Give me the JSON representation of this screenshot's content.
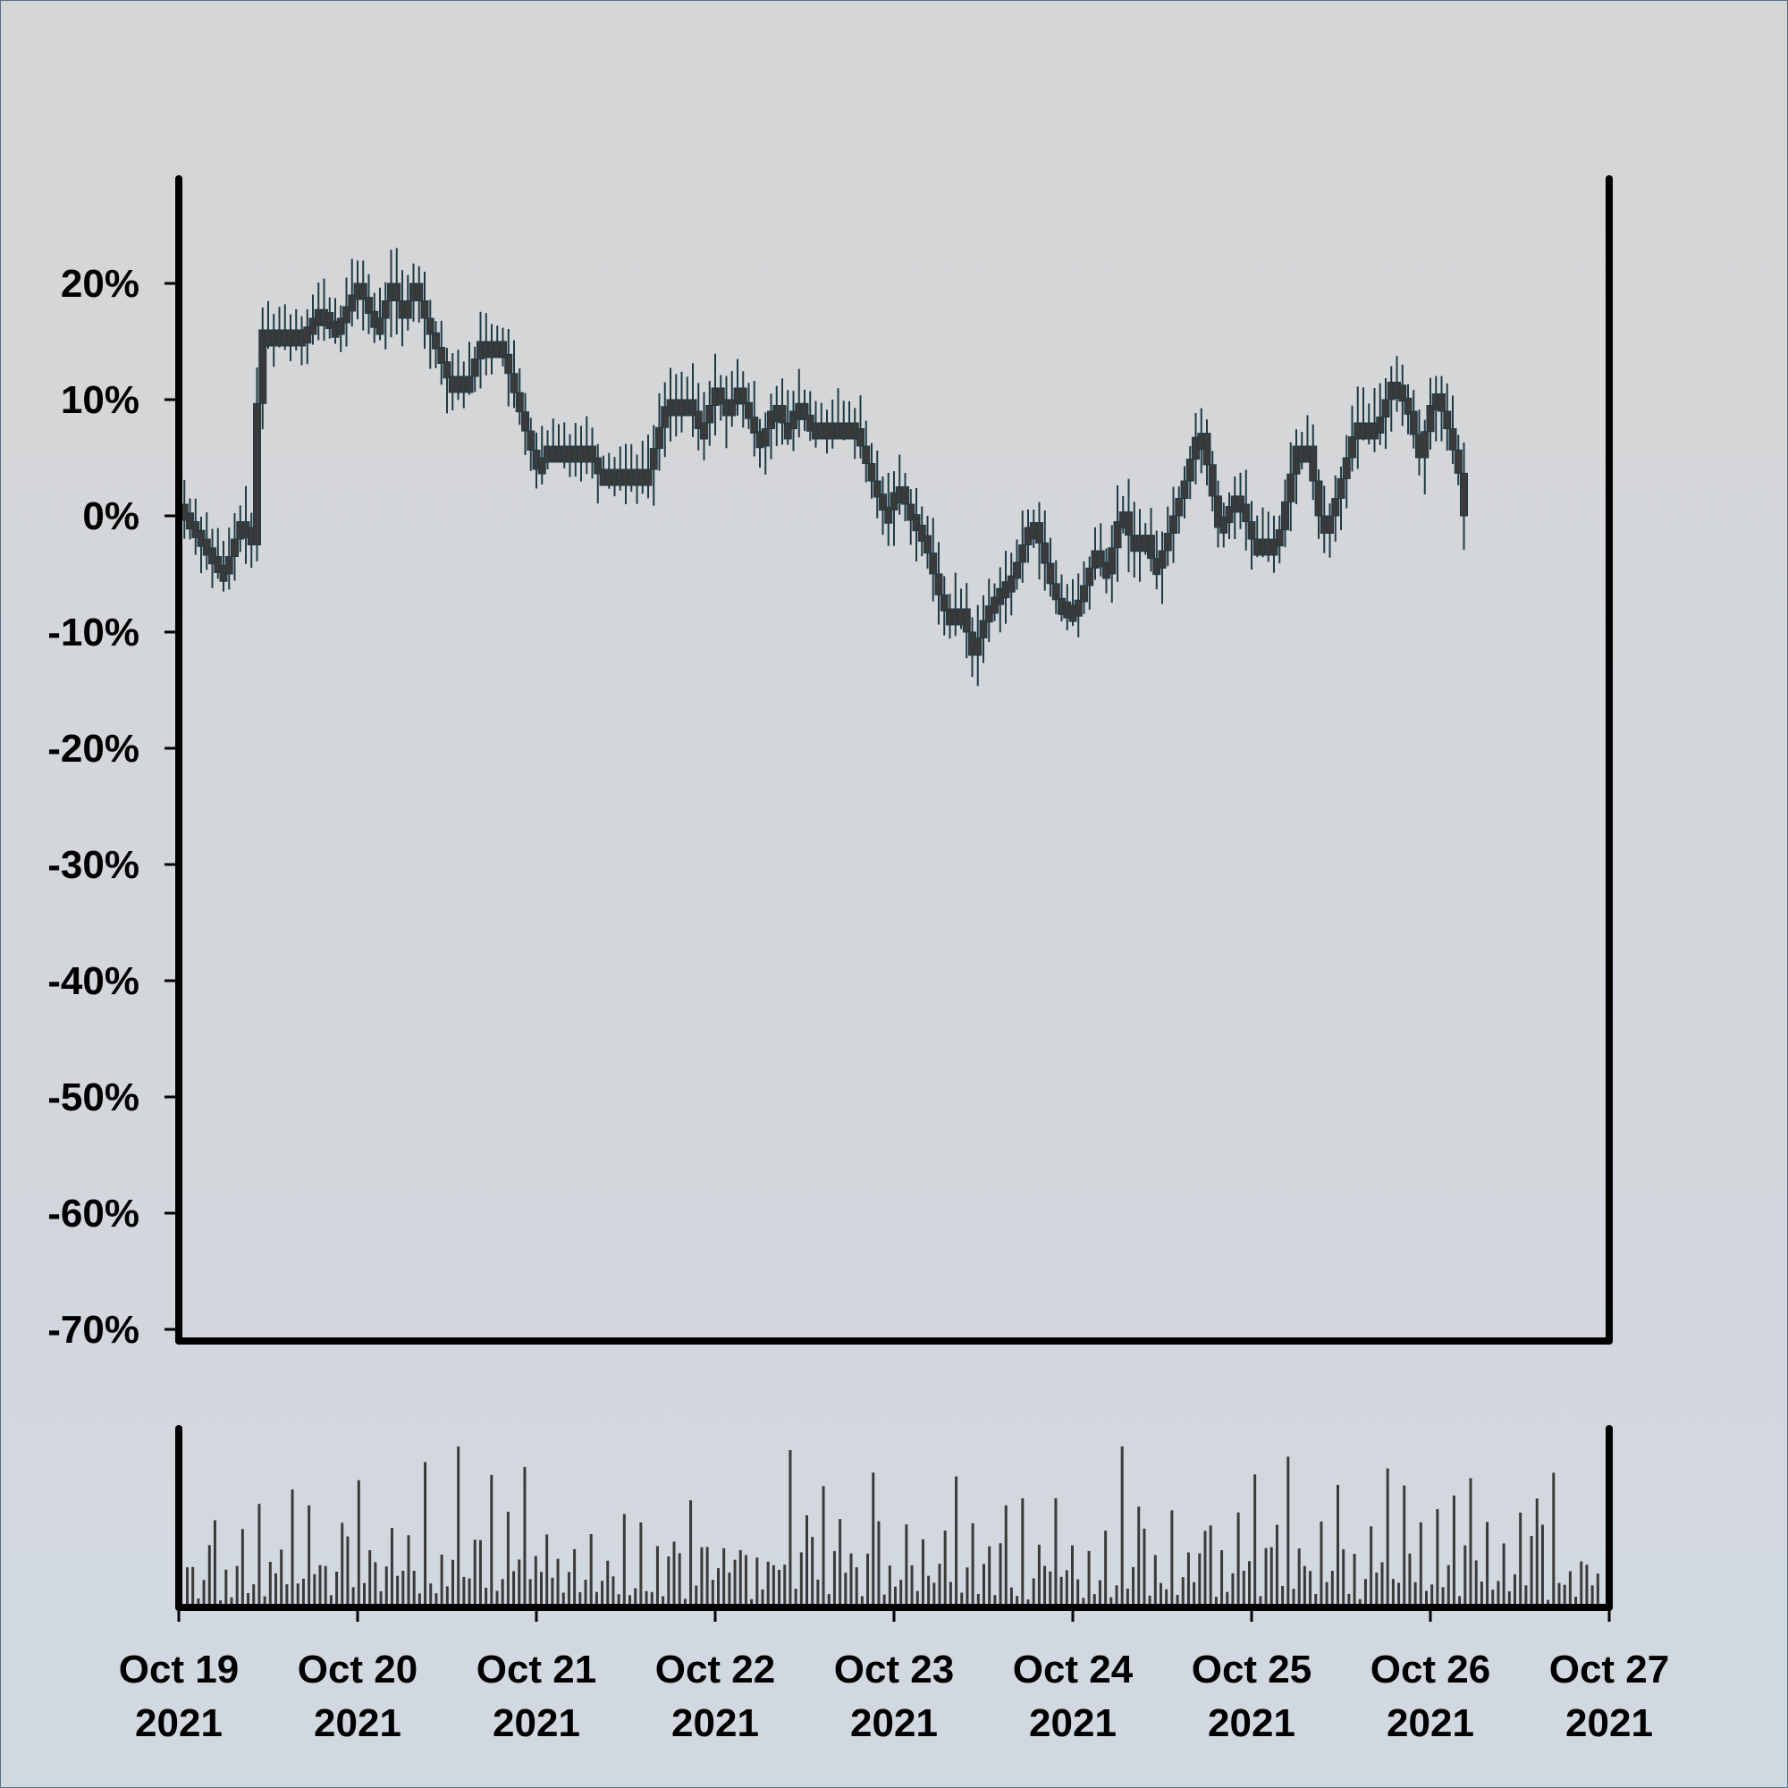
{
  "chart_data": {
    "type": "candlestick",
    "title": "",
    "xlabel": "",
    "ylabel": "",
    "y_unit": "%",
    "ylim": [
      -71,
      29
    ],
    "y_ticks": [
      20,
      10,
      0,
      -10,
      -20,
      -30,
      -40,
      -50,
      -60,
      -70
    ],
    "y_tick_labels": [
      "20%",
      "10%",
      "0%",
      "-10%",
      "-20%",
      "-30%",
      "-40%",
      "-50%",
      "-60%",
      "-70%"
    ],
    "x_ticks": [
      "2021-10-19",
      "2021-10-20",
      "2021-10-21",
      "2021-10-22",
      "2021-10-23",
      "2021-10-24",
      "2021-10-25",
      "2021-10-26",
      "2021-10-27"
    ],
    "x_tick_labels": [
      {
        "line1": "Oct 19",
        "line2": "2021"
      },
      {
        "line1": "Oct 20",
        "line2": "2021"
      },
      {
        "line1": "Oct 21",
        "line2": "2021"
      },
      {
        "line1": "Oct 22",
        "line2": "2021"
      },
      {
        "line1": "Oct 23",
        "line2": "2021"
      },
      {
        "line1": "Oct 24",
        "line2": "2021"
      },
      {
        "line1": "Oct 25",
        "line2": "2021"
      },
      {
        "line1": "Oct 26",
        "line2": "2021"
      },
      {
        "line1": "Oct 27",
        "line2": "2021"
      }
    ],
    "xlim": [
      "2021-10-19",
      "2021-10-27"
    ],
    "candle_interval_hours": 0.75,
    "close_path": [
      [
        "2021-10-19T00:00",
        1
      ],
      [
        "2021-10-19T03:00",
        -2
      ],
      [
        "2021-10-19T06:00",
        -5
      ],
      [
        "2021-10-19T08:30",
        0
      ],
      [
        "2021-10-19T10:00",
        -3
      ],
      [
        "2021-10-19T10:45",
        16
      ],
      [
        "2021-10-19T17:00",
        16
      ],
      [
        "2021-10-19T19:00",
        18
      ],
      [
        "2021-10-19T21:00",
        16
      ],
      [
        "2021-10-20T00:00",
        20
      ],
      [
        "2021-10-20T02:30",
        16
      ],
      [
        "2021-10-20T04:30",
        20
      ],
      [
        "2021-10-20T06:00",
        17
      ],
      [
        "2021-10-20T07:30",
        20
      ],
      [
        "2021-10-20T09:00",
        17
      ],
      [
        "2021-10-20T12:00",
        12
      ],
      [
        "2021-10-20T15:00",
        12
      ],
      [
        "2021-10-20T16:30",
        15
      ],
      [
        "2021-10-20T19:00",
        15
      ],
      [
        "2021-10-21T00:00",
        4
      ],
      [
        "2021-10-21T01:30",
        6
      ],
      [
        "2021-10-21T07:00",
        6
      ],
      [
        "2021-10-21T08:00",
        4
      ],
      [
        "2021-10-21T15:00",
        4
      ],
      [
        "2021-10-21T17:30",
        10
      ],
      [
        "2021-10-21T20:30",
        10
      ],
      [
        "2021-10-21T22:00",
        7
      ],
      [
        "2021-10-22T00:00",
        11
      ],
      [
        "2021-10-22T01:30",
        9
      ],
      [
        "2021-10-22T03:00",
        11
      ],
      [
        "2021-10-22T06:00",
        6
      ],
      [
        "2021-10-22T08:00",
        10
      ],
      [
        "2021-10-22T09:30",
        7
      ],
      [
        "2021-10-22T11:00",
        10
      ],
      [
        "2021-10-22T12:30",
        8
      ],
      [
        "2021-10-22T18:30",
        8
      ],
      [
        "2021-10-22T21:00",
        3
      ],
      [
        "2021-10-22T23:00",
        0
      ],
      [
        "2021-10-23T00:30",
        3
      ],
      [
        "2021-10-23T01:30",
        1
      ],
      [
        "2021-10-23T04:00",
        -2
      ],
      [
        "2021-10-23T06:30",
        -8
      ],
      [
        "2021-10-23T09:00",
        -8
      ],
      [
        "2021-10-23T10:30",
        -12
      ],
      [
        "2021-10-23T12:30",
        -8
      ],
      [
        "2021-10-23T14:30",
        -6
      ],
      [
        "2021-10-23T16:00",
        -5
      ],
      [
        "2021-10-23T18:30",
        0
      ],
      [
        "2021-10-23T21:30",
        -7
      ],
      [
        "2021-10-24T00:00",
        -8
      ],
      [
        "2021-10-24T01:00",
        -7
      ],
      [
        "2021-10-24T03:00",
        -3
      ],
      [
        "2021-10-24T04:30",
        -5
      ],
      [
        "2021-10-24T06:30",
        1
      ],
      [
        "2021-10-24T08:00",
        -3
      ],
      [
        "2021-10-24T09:30",
        -1
      ],
      [
        "2021-10-24T11:00",
        -5
      ],
      [
        "2021-10-24T13:00",
        -1
      ],
      [
        "2021-10-24T15:00",
        3
      ],
      [
        "2021-10-24T17:00",
        8
      ],
      [
        "2021-10-24T19:30",
        -1
      ],
      [
        "2021-10-24T22:00",
        2
      ],
      [
        "2021-10-25T00:00",
        -2
      ],
      [
        "2021-10-25T03:30",
        -2
      ],
      [
        "2021-10-25T06:00",
        6
      ],
      [
        "2021-10-25T07:30",
        6
      ],
      [
        "2021-10-25T09:30",
        -2
      ],
      [
        "2021-10-25T11:30",
        2
      ],
      [
        "2021-10-25T14:00",
        8
      ],
      [
        "2021-10-25T17:00",
        8
      ],
      [
        "2021-10-25T19:00",
        12
      ],
      [
        "2021-10-25T21:00",
        9
      ],
      [
        "2021-10-25T22:30",
        5
      ],
      [
        "2021-10-26T00:30",
        11
      ],
      [
        "2021-10-26T02:30",
        7
      ],
      [
        "2021-10-26T04:00",
        3
      ],
      [
        "2021-10-26T05:00",
        -3
      ]
    ],
    "volume": {
      "values_relative": [
        0.22,
        0.7,
        0.15,
        0.3,
        0.55,
        0.35,
        0.12,
        0.62,
        0.1,
        0.25,
        0.45,
        0.18
      ],
      "bar_count": 256,
      "ylim_relative": [
        0,
        1
      ]
    },
    "grid": false,
    "legend": "none"
  },
  "colors": {
    "background_top": "#d4d5d6",
    "background_bottom": "#d2d8e0",
    "frame_border": "#5a6f82",
    "axis": "#000000",
    "candle_body": "#3a3a3a",
    "candle_wick": "#1f3a44",
    "volume_bar": "#3a3a3a",
    "tick_label": "#000000"
  }
}
